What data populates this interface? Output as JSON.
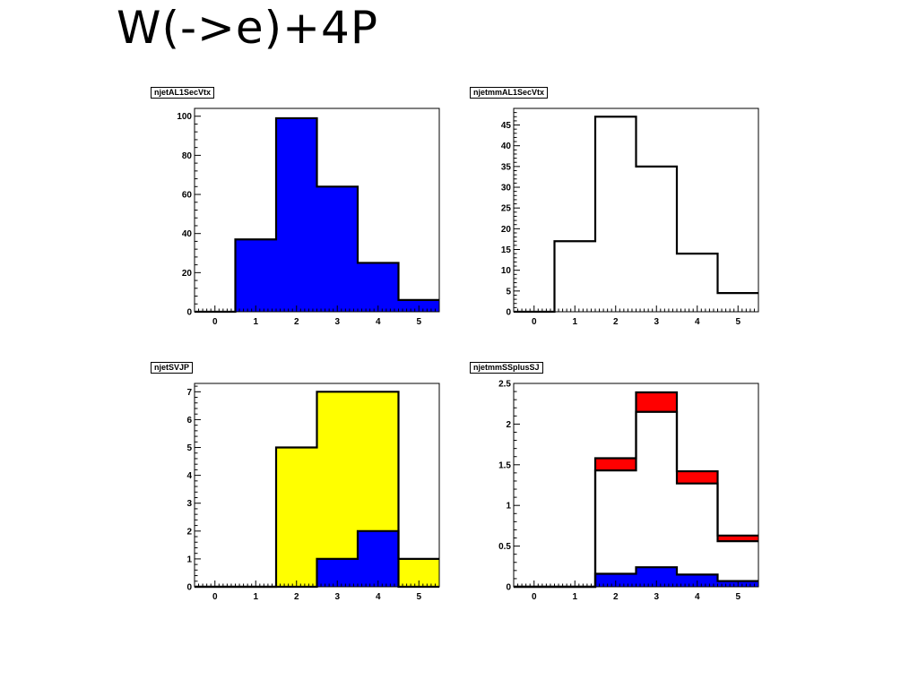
{
  "slide": {
    "title": "W(->e)+4P"
  },
  "chart_data": [
    {
      "type": "bar",
      "name": "njetAL1SecVtx",
      "categories": [
        0,
        1,
        2,
        3,
        4,
        5
      ],
      "xlim": [
        -0.5,
        5.5
      ],
      "ylim": [
        0,
        104
      ],
      "yticks": [
        0,
        20,
        40,
        60,
        80,
        100
      ],
      "tick_labels": [
        "0",
        "20",
        "40",
        "60",
        "80",
        "100"
      ],
      "xtick_labels": [
        "0",
        "1",
        "2",
        "3",
        "4",
        "5"
      ],
      "series": [
        {
          "values": [
            0,
            37,
            99,
            64,
            25,
            6
          ],
          "fill": "#0000ff"
        }
      ]
    },
    {
      "type": "bar",
      "name": "njetmmAL1SecVtx",
      "categories": [
        0,
        1,
        2,
        3,
        4,
        5
      ],
      "xlim": [
        -0.5,
        5.5
      ],
      "ylim": [
        0,
        49
      ],
      "yticks": [
        0,
        5,
        10,
        15,
        20,
        25,
        30,
        35,
        40,
        45
      ],
      "tick_labels": [
        "0",
        "5",
        "10",
        "15",
        "20",
        "25",
        "30",
        "35",
        "40",
        "45"
      ],
      "xtick_labels": [
        "0",
        "1",
        "2",
        "3",
        "4",
        "5"
      ],
      "series": [
        {
          "values": [
            0,
            17,
            47,
            35,
            14,
            4.5
          ],
          "fill": "none"
        }
      ]
    },
    {
      "type": "bar",
      "name": "njetSVJP",
      "categories": [
        0,
        1,
        2,
        3,
        4,
        5
      ],
      "xlim": [
        -0.5,
        5.5
      ],
      "ylim": [
        0,
        7.3
      ],
      "yticks": [
        0,
        1,
        2,
        3,
        4,
        5,
        6,
        7
      ],
      "tick_labels": [
        "0",
        "1",
        "2",
        "3",
        "4",
        "5",
        "6",
        "7"
      ],
      "xtick_labels": [
        "0",
        "1",
        "2",
        "3",
        "4",
        "5"
      ],
      "series": [
        {
          "values": [
            0,
            0,
            5,
            7,
            7,
            1
          ],
          "fill": "#ffff00"
        },
        {
          "values": [
            0,
            0,
            0,
            1,
            2,
            0
          ],
          "fill": "#0000ff"
        }
      ]
    },
    {
      "type": "bar",
      "name": "njetmmSSplusSJ",
      "categories": [
        0,
        1,
        2,
        3,
        4,
        5
      ],
      "xlim": [
        -0.5,
        5.5
      ],
      "ylim": [
        0,
        2.5
      ],
      "yticks": [
        0,
        0.5,
        1,
        1.5,
        2,
        2.5
      ],
      "tick_labels": [
        "0",
        "0.5",
        "1",
        "1.5",
        "2",
        "2.5"
      ],
      "xtick_labels": [
        "0",
        "1",
        "2",
        "3",
        "4",
        "5"
      ],
      "series": [
        {
          "values": [
            0,
            0,
            1.58,
            2.39,
            1.42,
            0.63
          ],
          "fill": "#ff0000"
        },
        {
          "values": [
            0,
            0,
            1.43,
            2.15,
            1.27,
            0.56
          ],
          "fill": "#ffffff"
        },
        {
          "values": [
            0,
            0,
            0.16,
            0.24,
            0.15,
            0.07
          ],
          "fill": "#0000ff"
        }
      ]
    }
  ]
}
